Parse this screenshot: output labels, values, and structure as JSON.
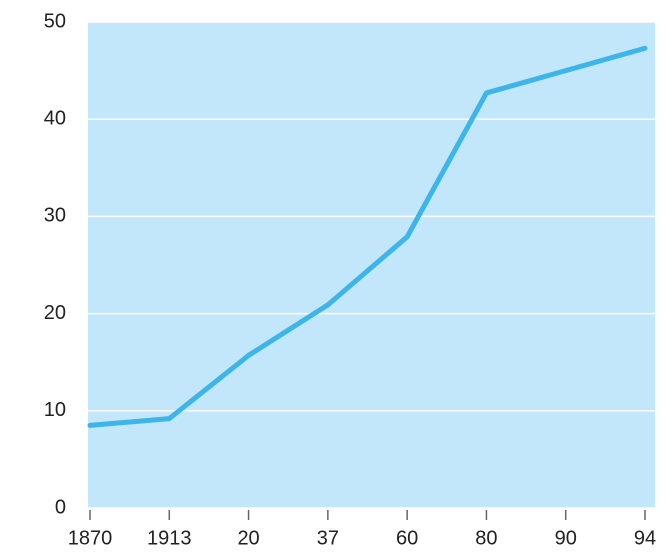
{
  "chart_data": {
    "type": "line",
    "categories": [
      "1870",
      "1913",
      "20",
      "37",
      "60",
      "80",
      "90",
      "94"
    ],
    "values": [
      8.5,
      9.2,
      15.7,
      20.9,
      27.9,
      42.7,
      45.0,
      47.3
    ],
    "color": "#3db5e8",
    "ylim": [
      0,
      50
    ],
    "yticks": [
      0,
      10,
      20,
      30,
      40,
      50
    ],
    "grid": true
  }
}
